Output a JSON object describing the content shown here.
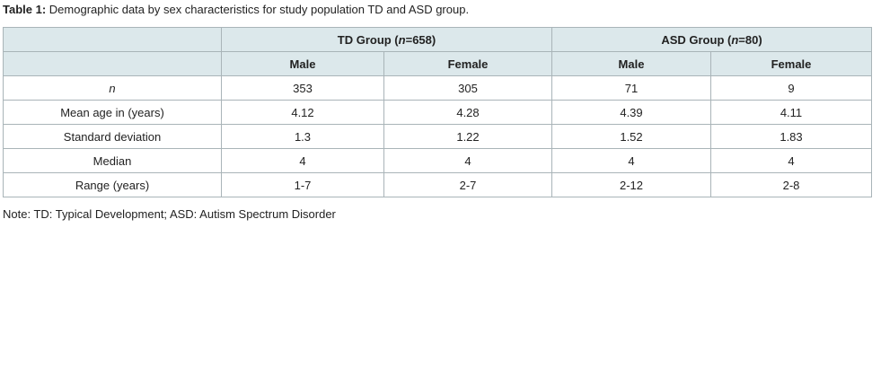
{
  "caption": {
    "label": "Table 1:",
    "text": " Demographic data by sex characteristics for study population TD and ASD group."
  },
  "table": {
    "groups": [
      {
        "prefix": "TD Group (",
        "n_symbol": "n",
        "suffix": "=658)"
      },
      {
        "prefix": "ASD Group (",
        "n_symbol": "n",
        "suffix": "=80)"
      }
    ],
    "subheaders": [
      "Male",
      "Female",
      "Male",
      "Female"
    ],
    "rows": [
      {
        "label": "n",
        "values": [
          "353",
          "305",
          "71",
          "9"
        ]
      },
      {
        "label": "Mean age in (years)",
        "values": [
          "4.12",
          "4.28",
          "4.39",
          "4.11"
        ]
      },
      {
        "label": "Standard deviation",
        "values": [
          "1.3",
          "1.22",
          "1.52",
          "1.83"
        ]
      },
      {
        "label": "Median",
        "values": [
          "4",
          "4",
          "4",
          "4"
        ]
      },
      {
        "label": "Range (years)",
        "values": [
          "1-7",
          "2-7",
          "2-12",
          "2-8"
        ]
      }
    ]
  },
  "note": "Note: TD:  Typical Development; ASD: Autism Spectrum Disorder",
  "colors": {
    "header_bg": "#dce8eb",
    "border": "#a9b4b8",
    "text": "#222222"
  }
}
